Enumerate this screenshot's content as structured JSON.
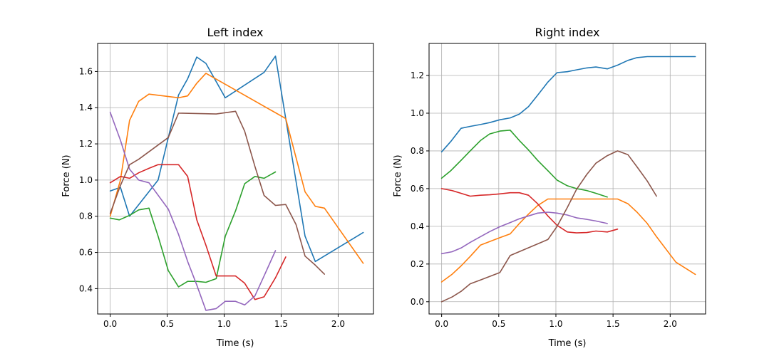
{
  "chart_data": [
    {
      "type": "line",
      "title": "Left index",
      "xlabel": "Time (s)",
      "ylabel": "Force (N)",
      "xlim": [
        -0.11,
        2.31
      ],
      "ylim": [
        0.26,
        1.755
      ],
      "xticks": [
        0.0,
        0.5,
        1.0,
        1.5,
        2.0
      ],
      "xtick_labels": [
        "0.0",
        "0.5",
        "1.0",
        "1.5",
        "2.0"
      ],
      "yticks": [
        0.4,
        0.6,
        0.8,
        1.0,
        1.2,
        1.4,
        1.6
      ],
      "ytick_labels": [
        "0.4",
        "0.6",
        "0.8",
        "1.0",
        "1.2",
        "1.4",
        "1.6"
      ],
      "grid": true,
      "series": [
        {
          "color": "#1f77b4",
          "x": [
            0.0,
            0.09,
            0.17,
            0.42,
            0.6,
            0.68,
            0.76,
            0.84,
            1.01,
            1.35,
            1.45,
            1.71,
            1.8,
            2.22
          ],
          "y": [
            0.94,
            0.96,
            0.8,
            1.0,
            1.47,
            1.56,
            1.68,
            1.645,
            1.455,
            1.595,
            1.685,
            0.69,
            0.55,
            0.71
          ]
        },
        {
          "color": "#ff7f0e",
          "x": [
            0.0,
            0.09,
            0.17,
            0.25,
            0.34,
            0.6,
            0.68,
            0.76,
            0.84,
            1.54,
            1.71,
            1.8,
            1.88,
            2.22
          ],
          "y": [
            0.8,
            1.0,
            1.33,
            1.435,
            1.475,
            1.455,
            1.465,
            1.535,
            1.59,
            1.34,
            0.935,
            0.855,
            0.845,
            0.54
          ]
        },
        {
          "color": "#2ca02c",
          "x": [
            0.0,
            0.08,
            0.17,
            0.25,
            0.34,
            0.42,
            0.51,
            0.6,
            0.68,
            0.76,
            0.84,
            0.93,
            1.01,
            1.1,
            1.18,
            1.27,
            1.35,
            1.45
          ],
          "y": [
            0.79,
            0.78,
            0.805,
            0.835,
            0.845,
            0.69,
            0.5,
            0.41,
            0.44,
            0.44,
            0.435,
            0.455,
            0.69,
            0.83,
            0.98,
            1.02,
            1.01,
            1.045
          ]
        },
        {
          "color": "#d62728",
          "x": [
            0.0,
            0.09,
            0.17,
            0.25,
            0.34,
            0.42,
            0.51,
            0.6,
            0.68,
            0.76,
            0.84,
            0.93,
            1.01,
            1.1,
            1.18,
            1.27,
            1.35,
            1.45,
            1.54
          ],
          "y": [
            0.985,
            1.02,
            1.01,
            1.04,
            1.065,
            1.085,
            1.085,
            1.085,
            1.02,
            0.78,
            0.64,
            0.47,
            0.47,
            0.47,
            0.43,
            0.34,
            0.355,
            0.46,
            0.575
          ]
        },
        {
          "color": "#9467bd",
          "x": [
            0.0,
            0.09,
            0.17,
            0.25,
            0.34,
            0.51,
            0.6,
            0.68,
            0.76,
            0.84,
            0.93,
            1.01,
            1.1,
            1.18,
            1.27,
            1.35,
            1.45
          ],
          "y": [
            1.375,
            1.22,
            1.06,
            1.0,
            0.985,
            0.84,
            0.7,
            0.55,
            0.42,
            0.28,
            0.29,
            0.33,
            0.33,
            0.31,
            0.36,
            0.47,
            0.61
          ]
        },
        {
          "color": "#8c564b",
          "x": [
            0.0,
            0.09,
            0.17,
            0.25,
            0.51,
            0.6,
            0.93,
            1.1,
            1.18,
            1.27,
            1.35,
            1.45,
            1.54,
            1.63,
            1.71,
            1.8,
            1.88
          ],
          "y": [
            0.815,
            0.97,
            1.085,
            1.115,
            1.235,
            1.37,
            1.365,
            1.38,
            1.27,
            1.075,
            0.915,
            0.86,
            0.865,
            0.755,
            0.58,
            0.53,
            0.48
          ]
        }
      ]
    },
    {
      "type": "line",
      "title": "Right index",
      "xlabel": "Time (s)",
      "ylabel": "Force (N)",
      "xlim": [
        -0.11,
        2.31
      ],
      "ylim": [
        -0.065,
        1.37
      ],
      "xticks": [
        0.0,
        0.5,
        1.0,
        1.5,
        2.0
      ],
      "xtick_labels": [
        "0.0",
        "0.5",
        "1.0",
        "1.5",
        "2.0"
      ],
      "yticks": [
        0.0,
        0.2,
        0.4,
        0.6,
        0.8,
        1.0,
        1.2
      ],
      "ytick_labels": [
        "0.0",
        "0.2",
        "0.4",
        "0.6",
        "0.8",
        "1.0",
        "1.2"
      ],
      "grid": true,
      "series": [
        {
          "color": "#1f77b4",
          "x": [
            0.0,
            0.08,
            0.17,
            0.25,
            0.34,
            0.42,
            0.51,
            0.6,
            0.68,
            0.76,
            0.84,
            0.93,
            1.01,
            1.1,
            1.18,
            1.27,
            1.35,
            1.45,
            1.54,
            1.63,
            1.71,
            1.8,
            2.22
          ],
          "y": [
            0.795,
            0.85,
            0.92,
            0.93,
            0.94,
            0.95,
            0.965,
            0.975,
            0.995,
            1.035,
            1.095,
            1.165,
            1.215,
            1.22,
            1.23,
            1.24,
            1.245,
            1.235,
            1.255,
            1.28,
            1.295,
            1.3,
            1.3
          ]
        },
        {
          "color": "#ff7f0e",
          "x": [
            0.0,
            0.09,
            0.17,
            0.25,
            0.34,
            0.51,
            0.6,
            0.68,
            0.76,
            0.84,
            0.93,
            1.01,
            1.1,
            1.18,
            1.27,
            1.35,
            1.45,
            1.54,
            1.63,
            1.71,
            1.8,
            1.88,
            2.05,
            2.22
          ],
          "y": [
            0.105,
            0.145,
            0.19,
            0.24,
            0.3,
            0.34,
            0.36,
            0.415,
            0.465,
            0.51,
            0.545,
            0.545,
            0.545,
            0.545,
            0.545,
            0.545,
            0.545,
            0.545,
            0.52,
            0.475,
            0.415,
            0.345,
            0.21,
            0.145
          ]
        },
        {
          "color": "#2ca02c",
          "x": [
            0.0,
            0.08,
            0.17,
            0.25,
            0.34,
            0.42,
            0.51,
            0.6,
            0.68,
            0.76,
            0.84,
            0.93,
            1.01,
            1.1,
            1.18,
            1.27,
            1.35,
            1.45
          ],
          "y": [
            0.655,
            0.695,
            0.75,
            0.8,
            0.855,
            0.89,
            0.905,
            0.91,
            0.855,
            0.805,
            0.75,
            0.695,
            0.645,
            0.615,
            0.6,
            0.59,
            0.575,
            0.555
          ]
        },
        {
          "color": "#d62728",
          "x": [
            0.0,
            0.09,
            0.17,
            0.25,
            0.34,
            0.42,
            0.51,
            0.6,
            0.68,
            0.76,
            0.84,
            0.93,
            1.01,
            1.1,
            1.18,
            1.27,
            1.35,
            1.45,
            1.54
          ],
          "y": [
            0.6,
            0.59,
            0.575,
            0.56,
            0.565,
            0.567,
            0.572,
            0.578,
            0.578,
            0.565,
            0.52,
            0.455,
            0.405,
            0.37,
            0.365,
            0.367,
            0.375,
            0.37,
            0.385
          ]
        },
        {
          "color": "#9467bd",
          "x": [
            0.0,
            0.09,
            0.17,
            0.25,
            0.34,
            0.42,
            0.51,
            0.6,
            0.68,
            0.76,
            0.84,
            0.93,
            1.01,
            1.1,
            1.18,
            1.27,
            1.35,
            1.45
          ],
          "y": [
            0.255,
            0.265,
            0.285,
            0.315,
            0.345,
            0.372,
            0.398,
            0.42,
            0.44,
            0.455,
            0.47,
            0.475,
            0.47,
            0.46,
            0.445,
            0.437,
            0.428,
            0.415
          ]
        },
        {
          "color": "#8c564b",
          "x": [
            0.0,
            0.09,
            0.17,
            0.25,
            0.34,
            0.51,
            0.6,
            0.93,
            1.01,
            1.1,
            1.18,
            1.27,
            1.35,
            1.45,
            1.54,
            1.63,
            1.71,
            1.8,
            1.88
          ],
          "y": [
            0.0,
            0.025,
            0.055,
            0.095,
            0.115,
            0.155,
            0.245,
            0.33,
            0.4,
            0.5,
            0.595,
            0.675,
            0.735,
            0.775,
            0.8,
            0.78,
            0.715,
            0.64,
            0.56
          ]
        }
      ]
    }
  ]
}
